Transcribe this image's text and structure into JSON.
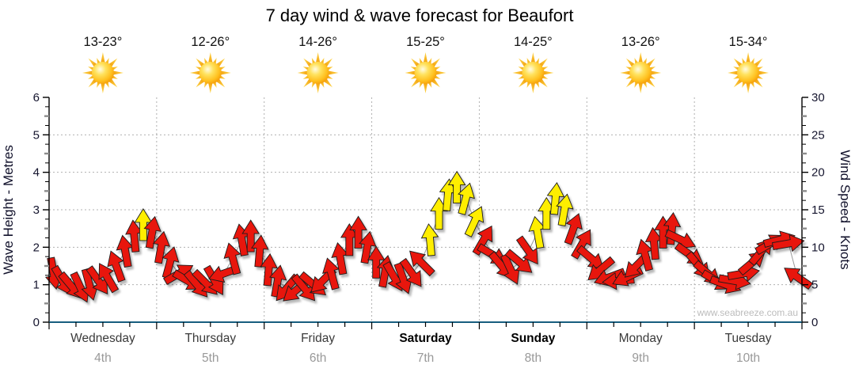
{
  "chart_data": {
    "type": "scatter",
    "variant": "wind-arrow-forecast",
    "title": "7 day wind & wave forecast for Beaufort",
    "ylabel_left": "Wave Height - Metres",
    "ylabel_right": "Wind Speed - Knots",
    "ylim_left": [
      0,
      6
    ],
    "ylim_right": [
      0,
      30
    ],
    "y_ticks_left": [
      0,
      1,
      2,
      3,
      4,
      5,
      6
    ],
    "y_ticks_right": [
      0,
      5,
      10,
      15,
      20,
      25,
      30
    ],
    "grid": true,
    "legend_position": "none",
    "watermark": "www.seabreeze.com.au",
    "points_per_day": 12,
    "point_interval_hours": 2,
    "days": [
      {
        "name": "Wednesday",
        "date": "4th",
        "temp": "13-23°",
        "weekend": false,
        "icon": "sun"
      },
      {
        "name": "Thursday",
        "date": "5th",
        "temp": "12-26°",
        "weekend": false,
        "icon": "sun"
      },
      {
        "name": "Friday",
        "date": "6th",
        "temp": "14-26°",
        "weekend": false,
        "icon": "sun"
      },
      {
        "name": "Saturday",
        "date": "7th",
        "temp": "15-25°",
        "weekend": true,
        "icon": "sun"
      },
      {
        "name": "Sunday",
        "date": "8th",
        "temp": "14-25°",
        "weekend": true,
        "icon": "sun"
      },
      {
        "name": "Monday",
        "date": "9th",
        "temp": "13-26°",
        "weekend": false,
        "icon": "sun"
      },
      {
        "name": "Tuesday",
        "date": "10th",
        "temp": "15-34°",
        "weekend": false,
        "icon": "sun"
      }
    ],
    "series": [
      {
        "day": "Wednesday",
        "knots": [
          6.5,
          5.5,
          4.8,
          4.6,
          5,
          5.5,
          6,
          7.5,
          9.5,
          11.5,
          13,
          12
        ],
        "dir_deg": [
          170,
          150,
          140,
          155,
          165,
          145,
          330,
          340,
          350,
          355,
          0,
          10
        ],
        "color": [
          "r",
          "r",
          "r",
          "r",
          "r",
          "r",
          "r",
          "r",
          "r",
          "r",
          "y",
          "r"
        ]
      },
      {
        "day": "Thursday",
        "knots": [
          10,
          8,
          6.5,
          5.5,
          5,
          5.2,
          5.5,
          6.5,
          8.5,
          11,
          11.5,
          9.5
        ],
        "dir_deg": [
          10,
          15,
          60,
          120,
          140,
          135,
          150,
          250,
          345,
          350,
          0,
          5
        ],
        "color": [
          "r",
          "r",
          "r",
          "r",
          "r",
          "r",
          "r",
          "r",
          "r",
          "r",
          "r",
          "r"
        ]
      },
      {
        "day": "Friday",
        "knots": [
          7,
          5.5,
          4.5,
          4.2,
          4.5,
          5,
          5.5,
          6.5,
          8.5,
          11,
          12,
          10
        ],
        "dir_deg": [
          5,
          10,
          220,
          230,
          140,
          130,
          225,
          345,
          350,
          0,
          0,
          10
        ],
        "color": [
          "r",
          "r",
          "r",
          "r",
          "r",
          "r",
          "r",
          "r",
          "r",
          "r",
          "r",
          "r"
        ]
      },
      {
        "day": "Saturday",
        "knots": [
          8,
          6.8,
          6,
          5.8,
          6.5,
          8,
          11,
          14.5,
          17,
          18,
          16.5,
          13.5
        ],
        "dir_deg": [
          0,
          10,
          150,
          160,
          145,
          315,
          355,
          0,
          5,
          0,
          15,
          25
        ],
        "color": [
          "r",
          "r",
          "r",
          "r",
          "r",
          "r",
          "y",
          "y",
          "y",
          "y",
          "y",
          "y"
        ]
      },
      {
        "day": "Sunday",
        "knots": [
          11,
          9,
          7.5,
          7,
          8,
          9.5,
          12,
          14.5,
          16.5,
          15,
          12.5,
          10.5
        ],
        "dir_deg": [
          30,
          120,
          140,
          155,
          130,
          145,
          350,
          0,
          5,
          10,
          20,
          30
        ],
        "color": [
          "r",
          "r",
          "r",
          "r",
          "r",
          "r",
          "y",
          "y",
          "y",
          "y",
          "r",
          "r"
        ]
      },
      {
        "day": "Monday",
        "knots": [
          8.5,
          7,
          6,
          5.5,
          6,
          7.5,
          9,
          10.5,
          12,
          12.5,
          11,
          9
        ],
        "dir_deg": [
          130,
          230,
          250,
          265,
          245,
          225,
          345,
          355,
          0,
          5,
          115,
          125
        ],
        "color": [
          "r",
          "r",
          "r",
          "r",
          "r",
          "r",
          "r",
          "r",
          "r",
          "r",
          "r",
          "r"
        ]
      },
      {
        "day": "Tuesday",
        "knots": [
          7.5,
          6.5,
          5.5,
          5,
          5.5,
          6.5,
          8,
          9.5,
          10.5,
          11,
          10.5,
          6
        ],
        "dir_deg": [
          140,
          130,
          120,
          110,
          100,
          80,
          50,
          40,
          60,
          75,
          80,
          305
        ],
        "color": [
          "r",
          "r",
          "r",
          "r",
          "r",
          "r",
          "r",
          "r",
          "r",
          "r",
          "r",
          "r"
        ]
      }
    ],
    "colors": {
      "arrow_red": "#e81309",
      "arrow_yellow": "#ffee00",
      "arrow_outline": "#1c1c1c",
      "grid": "#b0b0b0",
      "axis_black": "#000000",
      "axis_bottom": "#175d7e",
      "connect_line": "#9a9a9a",
      "day_label": "#3a3a3a",
      "weekend_label": "#000000",
      "date_label": "#999999",
      "tick_label": "#15152e",
      "temp_label": "#111111",
      "sun_core": "#ffc01e",
      "sun_ray": "#f3a008"
    }
  }
}
